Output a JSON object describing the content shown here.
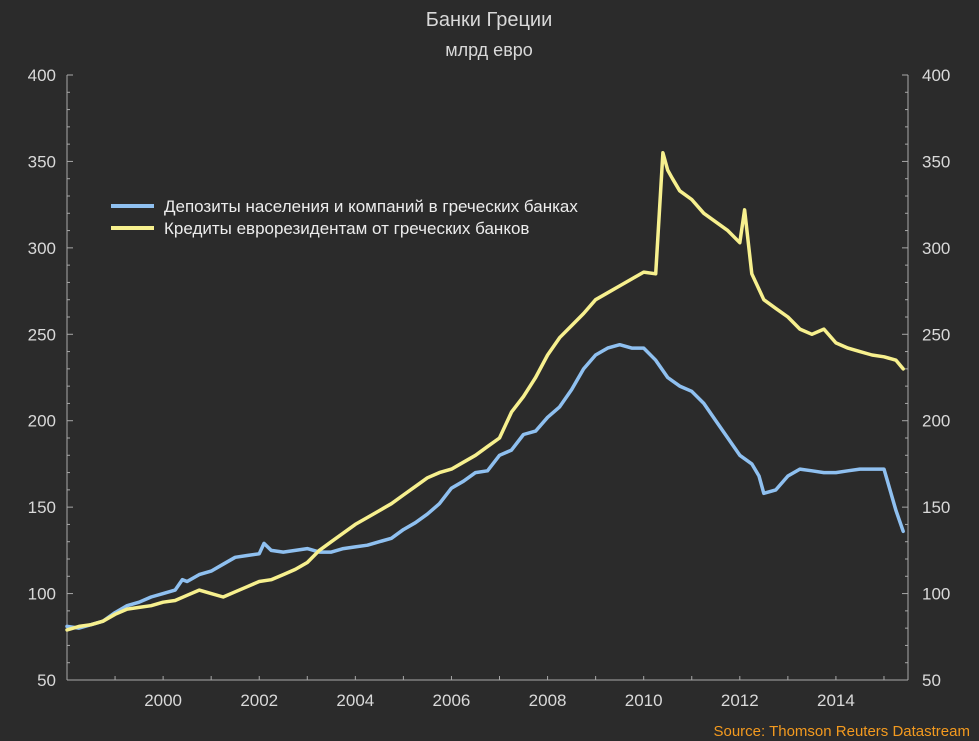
{
  "chart_data": {
    "type": "line",
    "title": "Банки Греции",
    "subtitle": "млрд евро",
    "source": "Source: Thomson Reuters Datastream",
    "xlabel": "",
    "ylabel": "",
    "xlim": [
      1998.0,
      2015.5
    ],
    "ylim": [
      50,
      400
    ],
    "x_ticks": [
      2000,
      2002,
      2004,
      2006,
      2008,
      2010,
      2012,
      2014
    ],
    "y_ticks": [
      50,
      100,
      150,
      200,
      250,
      300,
      350,
      400
    ],
    "y_ticks_right": [
      50,
      100,
      150,
      200,
      250,
      300,
      350,
      400
    ],
    "grid": false,
    "legend": "upper-left",
    "series": [
      {
        "name": "Депозиты населения и компаний в греческих банках",
        "color": "#8fc0f0",
        "x": [
          1998.0,
          1998.25,
          1998.5,
          1998.75,
          1999.0,
          1999.25,
          1999.5,
          1999.75,
          2000.0,
          2000.25,
          2000.4,
          2000.5,
          2000.75,
          2001.0,
          2001.25,
          2001.5,
          2001.75,
          2002.0,
          2002.1,
          2002.25,
          2002.5,
          2002.75,
          2003.0,
          2003.25,
          2003.5,
          2003.75,
          2004.0,
          2004.25,
          2004.5,
          2004.75,
          2005.0,
          2005.25,
          2005.5,
          2005.75,
          2006.0,
          2006.25,
          2006.5,
          2006.75,
          2007.0,
          2007.25,
          2007.5,
          2007.75,
          2008.0,
          2008.25,
          2008.5,
          2008.75,
          2009.0,
          2009.25,
          2009.5,
          2009.75,
          2010.0,
          2010.25,
          2010.5,
          2010.75,
          2011.0,
          2011.25,
          2011.5,
          2011.75,
          2012.0,
          2012.25,
          2012.4,
          2012.5,
          2012.75,
          2013.0,
          2013.25,
          2013.5,
          2013.75,
          2014.0,
          2014.25,
          2014.5,
          2014.75,
          2015.0,
          2015.25,
          2015.4
        ],
        "values": [
          81,
          80,
          82,
          84,
          89,
          93,
          95,
          98,
          100,
          102,
          108,
          107,
          111,
          113,
          117,
          121,
          122,
          123,
          129,
          125,
          124,
          125,
          126,
          124,
          124,
          126,
          127,
          128,
          130,
          132,
          137,
          141,
          146,
          152,
          161,
          165,
          170,
          171,
          180,
          183,
          192,
          194,
          202,
          208,
          218,
          230,
          238,
          242,
          244,
          242,
          242,
          235,
          225,
          220,
          217,
          210,
          200,
          190,
          180,
          175,
          168,
          158,
          160,
          168,
          172,
          171,
          170,
          170,
          171,
          172,
          172,
          172,
          148,
          136
        ]
      },
      {
        "name": "Кредиты еврорезидентам от греческих банков",
        "color": "#f7f08e",
        "x": [
          1998.0,
          1998.25,
          1998.5,
          1998.75,
          1999.0,
          1999.25,
          1999.5,
          1999.75,
          2000.0,
          2000.25,
          2000.5,
          2000.75,
          2001.0,
          2001.25,
          2001.5,
          2001.75,
          2002.0,
          2002.25,
          2002.5,
          2002.75,
          2003.0,
          2003.25,
          2003.5,
          2003.75,
          2004.0,
          2004.25,
          2004.5,
          2004.75,
          2005.0,
          2005.25,
          2005.5,
          2005.75,
          2006.0,
          2006.25,
          2006.5,
          2006.75,
          2007.0,
          2007.25,
          2007.5,
          2007.75,
          2008.0,
          2008.25,
          2008.5,
          2008.75,
          2009.0,
          2009.25,
          2009.5,
          2009.75,
          2010.0,
          2010.25,
          2010.4,
          2010.5,
          2010.6,
          2010.75,
          2011.0,
          2011.25,
          2011.5,
          2011.75,
          2012.0,
          2012.1,
          2012.25,
          2012.5,
          2012.75,
          2013.0,
          2013.25,
          2013.5,
          2013.75,
          2014.0,
          2014.25,
          2014.5,
          2014.75,
          2015.0,
          2015.25,
          2015.4
        ],
        "values": [
          79,
          81,
          82,
          84,
          88,
          91,
          92,
          93,
          95,
          96,
          99,
          102,
          100,
          98,
          101,
          104,
          107,
          108,
          111,
          114,
          118,
          125,
          130,
          135,
          140,
          144,
          148,
          152,
          157,
          162,
          167,
          170,
          172,
          176,
          180,
          185,
          190,
          205,
          214,
          225,
          238,
          248,
          255,
          262,
          270,
          274,
          278,
          282,
          286,
          285,
          355,
          345,
          340,
          333,
          328,
          320,
          315,
          310,
          303,
          322,
          285,
          270,
          265,
          260,
          253,
          250,
          253,
          245,
          242,
          240,
          238,
          237,
          235,
          230
        ]
      }
    ]
  }
}
